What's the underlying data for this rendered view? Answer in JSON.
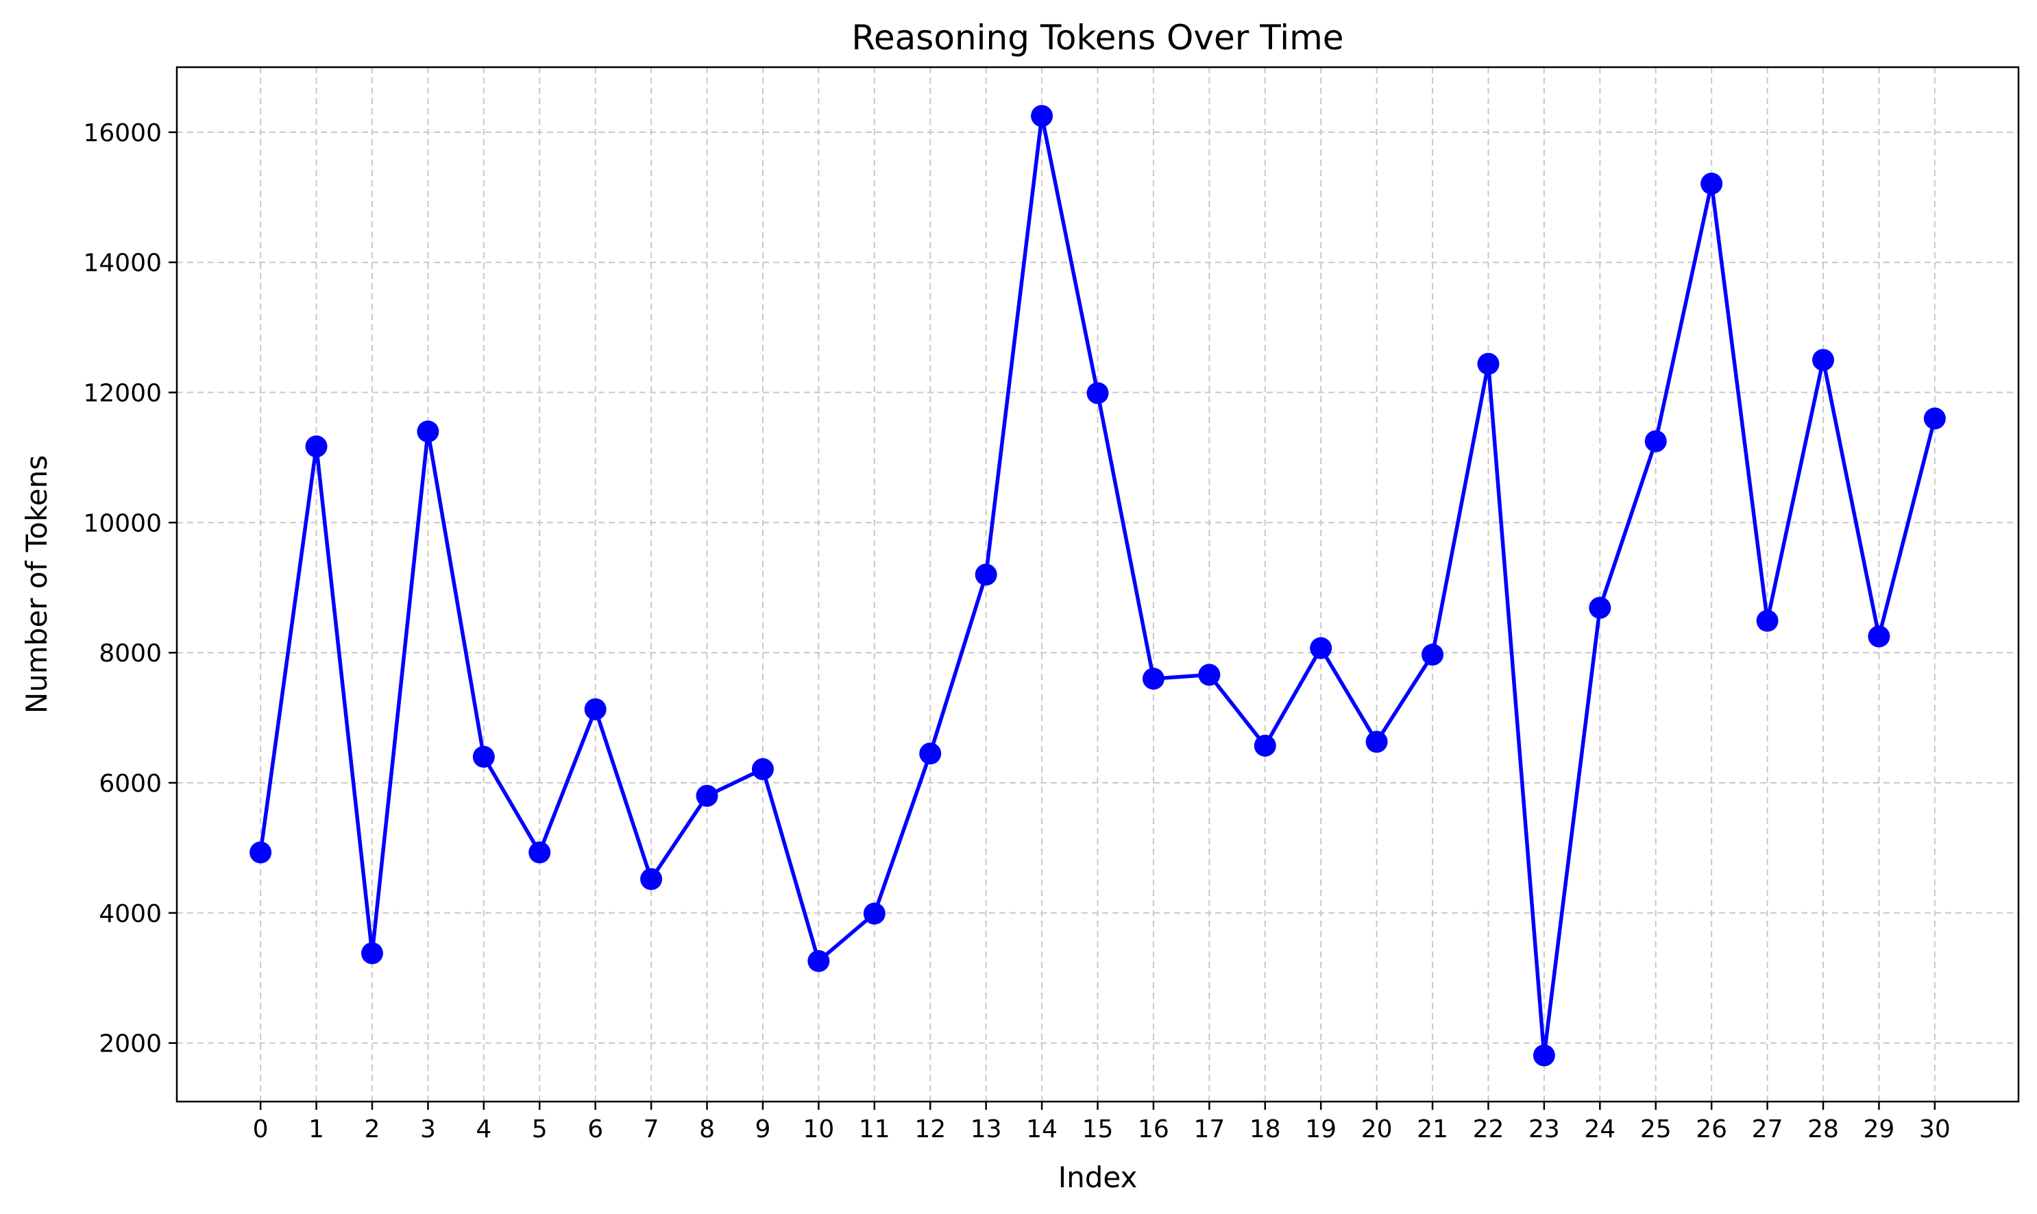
{
  "chart_data": {
    "type": "line",
    "title": "Reasoning Tokens Over Time",
    "xlabel": "Index",
    "ylabel": "Number of Tokens",
    "x": [
      0,
      1,
      2,
      3,
      4,
      5,
      6,
      7,
      8,
      9,
      10,
      11,
      12,
      13,
      14,
      15,
      16,
      17,
      18,
      19,
      20,
      21,
      22,
      23,
      24,
      25,
      26,
      27,
      28,
      29,
      30
    ],
    "series": [
      {
        "values": [
          4930,
          11170,
          3380,
          11400,
          6400,
          4930,
          7130,
          4520,
          5800,
          6210,
          3260,
          3990,
          6450,
          9200,
          16250,
          11990,
          7600,
          7660,
          6570,
          8070,
          6630,
          7970,
          12440,
          1810,
          8690,
          11250,
          15210,
          8490,
          12500,
          8250,
          11600
        ]
      }
    ],
    "xticks": [
      "0",
      "1",
      "2",
      "3",
      "4",
      "5",
      "6",
      "7",
      "8",
      "9",
      "10",
      "11",
      "12",
      "13",
      "14",
      "15",
      "16",
      "17",
      "18",
      "19",
      "20",
      "21",
      "22",
      "23",
      "24",
      "25",
      "26",
      "27",
      "28",
      "29",
      "30"
    ],
    "yticks": [
      "2000",
      "4000",
      "6000",
      "8000",
      "10000",
      "12000",
      "14000",
      "16000"
    ],
    "ytick_values": [
      2000,
      4000,
      6000,
      8000,
      10000,
      12000,
      14000,
      16000
    ],
    "xlim": [
      -1.5,
      31.5
    ],
    "ylim": [
      1100,
      17000
    ],
    "grid": true,
    "grid_style": "dashed",
    "legend": "none",
    "line_color": "#0000ff",
    "marker": "circle",
    "grid_color": "#c8c8c8"
  }
}
